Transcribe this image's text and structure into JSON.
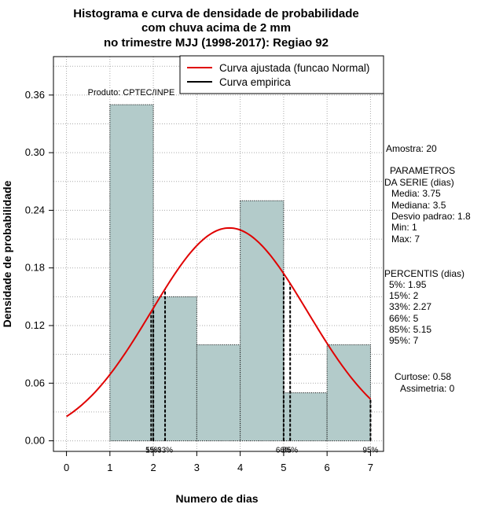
{
  "chart_data": {
    "type": "bar",
    "title_lines": [
      "Histograma e curva de densidade de probabilidade",
      "com chuva acima de 2 mm",
      "no trimestre MJJ (1998-2017): Regiao 92"
    ],
    "xlabel": "Numero de dias",
    "ylabel": "Densidade de probabilidade",
    "xlim": [
      -0.3,
      7.3
    ],
    "ylim": [
      -0.011,
      0.4
    ],
    "x_ticks": [
      0,
      1,
      2,
      3,
      4,
      5,
      6,
      7
    ],
    "y_ticks": [
      0.0,
      0.06,
      0.12,
      0.18,
      0.24,
      0.3,
      0.36
    ],
    "y_tick_labels": [
      "0.00",
      "0.06",
      "0.12",
      "0.18",
      "0.24",
      "0.30",
      "0.36"
    ],
    "bins": [
      {
        "start": 1,
        "end": 2,
        "density": 0.35
      },
      {
        "start": 2,
        "end": 3,
        "density": 0.15
      },
      {
        "start": 3,
        "end": 4,
        "density": 0.1
      },
      {
        "start": 4,
        "end": 5,
        "density": 0.25
      },
      {
        "start": 5,
        "end": 6,
        "density": 0.05
      },
      {
        "start": 6,
        "end": 7,
        "density": 0.1
      }
    ],
    "normal_curve": {
      "mean": 3.75,
      "sd": 1.8,
      "x_from": 0,
      "x_to": 7
    },
    "percentile_lines": [
      {
        "x": 1.95,
        "label": "5%"
      },
      {
        "x": 2,
        "label": "15%"
      },
      {
        "x": 2.27,
        "label": "33%"
      },
      {
        "x": 5,
        "label": "66%"
      },
      {
        "x": 5.15,
        "label": "85%"
      },
      {
        "x": 7,
        "label": "95%"
      }
    ],
    "legend": [
      {
        "label": "Curva ajustada (funcao Normal)",
        "color": "#e00000"
      },
      {
        "label": "Curva empirica",
        "color": "#000000"
      }
    ],
    "product_label": "Produto: CPTEC/INPE",
    "colors": {
      "bar_fill": "#b3cbca",
      "curve": "#e00000",
      "grid": "#aaaaaa"
    },
    "side_text": {
      "amostra": "Amostra: 20",
      "params_title_1": "PARAMETROS",
      "params_title_2": "DA SERIE (dias)",
      "params": [
        "Media: 3.75",
        "Mediana: 3.5",
        "Desvio padrao: 1.8",
        "Min: 1",
        "Max: 7"
      ],
      "percentis_title": "PERCENTIS (dias)",
      "percentis": [
        "5%: 1.95",
        "15%: 2",
        "33%: 2.27",
        "66%: 5",
        "85%: 5.15",
        "95%: 7"
      ],
      "curtose": "Curtose: 0.58",
      "assimetria": "Assimetria: 0"
    }
  }
}
